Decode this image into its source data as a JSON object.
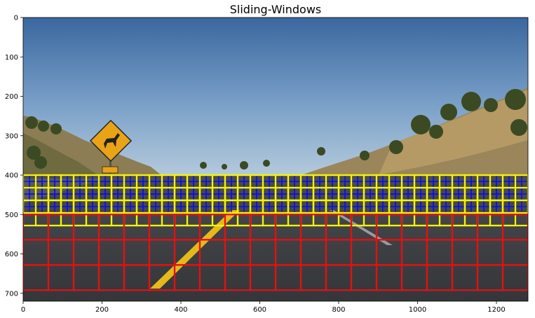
{
  "chart_data": {
    "type": "image",
    "title": "Sliding-Windows",
    "xlim": [
      0,
      1280
    ],
    "ylim": [
      720,
      0
    ],
    "x_ticks": [
      0,
      200,
      400,
      600,
      800,
      1000,
      1200
    ],
    "y_ticks": [
      0,
      100,
      200,
      300,
      400,
      500,
      600,
      700
    ],
    "x_tick_labels": [
      "0",
      "200",
      "400",
      "600",
      "800",
      "1000",
      "1200"
    ],
    "y_tick_labels": [
      "0",
      "100",
      "200",
      "300",
      "400",
      "500",
      "600",
      "700"
    ],
    "grid": false,
    "legend": "none",
    "window_sets": [
      {
        "color": "#0a12e6",
        "size": 32,
        "overlap": 0.5,
        "y_range": [
          400,
          500
        ],
        "x_range": [
          0,
          1280
        ]
      },
      {
        "color": "#f5f500",
        "size": 64,
        "overlap": 0.5,
        "y_range": [
          400,
          528
        ],
        "x_range": [
          0,
          1280
        ]
      },
      {
        "color": "#e61010",
        "size": 64,
        "overlap": 0,
        "y_range": [
          500,
          692
        ],
        "x_range": [
          0,
          1280
        ]
      }
    ],
    "colors": {
      "sky_top": "#3d6aa8",
      "sky_bottom": "#a8c4dc",
      "hill": "#8a7a52",
      "road": "#3c3d42",
      "lane_yellow": "#e5b91a",
      "sign": "#e8a317"
    }
  }
}
